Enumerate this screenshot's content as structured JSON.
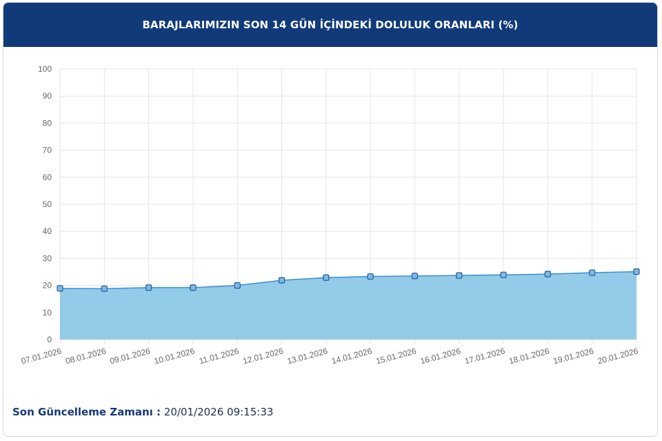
{
  "header": {
    "title": "BARAJLARIMIZIN SON 14 GÜN İÇİNDEKİ DOLULUK ORANLARI (%)"
  },
  "footer": {
    "label": "Son Güncelleme Zamanı :",
    "value": "20/01/2026 09:15:33"
  },
  "colors": {
    "header_bg": "#103a7a",
    "area_fill": "#93cbe9",
    "line": "#3a8ed0",
    "marker_fill": "#7fb8e6",
    "marker_stroke": "#1f5c99",
    "grid": "#e6e6e6"
  },
  "chart_data": {
    "type": "area",
    "categories": [
      "07.01.2026",
      "08.01.2026",
      "09.01.2026",
      "10.01.2026",
      "11.01.2026",
      "12.01.2026",
      "13.01.2026",
      "14.01.2026",
      "15.01.2026",
      "16.01.2026",
      "17.01.2026",
      "18.01.2026",
      "19.01.2026",
      "20.01.2026"
    ],
    "series": [
      {
        "values": [
          18.9,
          18.8,
          19.2,
          19.2,
          20.0,
          21.9,
          22.9,
          23.3,
          23.5,
          23.7,
          23.9,
          24.2,
          24.7,
          25.1
        ]
      }
    ],
    "yticks": [
      0,
      10,
      20,
      30,
      40,
      50,
      60,
      70,
      80,
      90,
      100
    ],
    "ylim": [
      0,
      100
    ],
    "grid": true,
    "legend": "none"
  }
}
